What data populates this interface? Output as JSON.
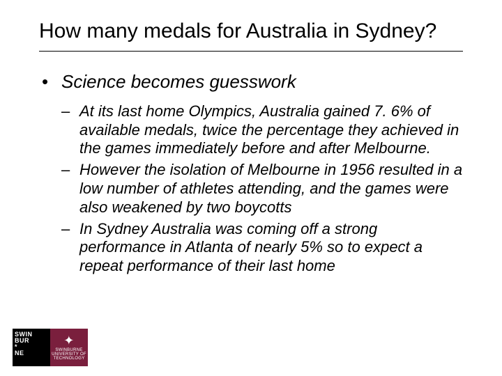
{
  "title": "How many medals for Australia in Sydney?",
  "bullets": {
    "level1": {
      "item1": "Science becomes guesswork"
    },
    "level2": {
      "item1": "At its last home Olympics, Australia gained 7. 6% of available medals, twice the percentage they achieved in the games immediately before and after Melbourne.",
      "item2": "However the isolation of Melbourne in 1956 resulted in a low number of athletes attending, and the games were also weakened by two boycotts",
      "item3": "In Sydney Australia was coming off a strong performance in Atlanta of nearly 5% so to expect a repeat performance of their last home"
    }
  },
  "logo": {
    "line1": "SWIN",
    "line2": "BUR",
    "line3": "*",
    "line4": "NE",
    "right_top": "SWINBURNE",
    "right_mid": "UNIVERSITY OF",
    "right_bot": "TECHNOLOGY"
  }
}
